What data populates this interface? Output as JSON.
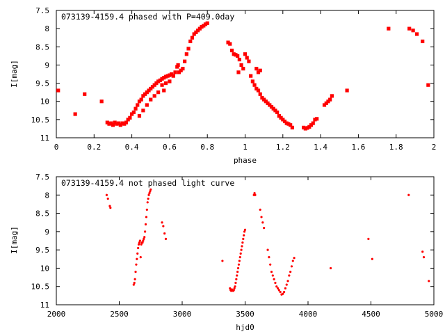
{
  "chart_data": [
    {
      "type": "scatter",
      "title": "073139-4159.4 phased with P=409.0day",
      "xlabel": "phase",
      "ylabel": "I[mag]",
      "xlim": [
        0,
        2
      ],
      "ylim": [
        11,
        7.5
      ],
      "y_inverted": true,
      "xticks": [
        0,
        0.2,
        0.4,
        0.6,
        0.8,
        1,
        1.2,
        1.4,
        1.6,
        1.8,
        2
      ],
      "yticks": [
        7.5,
        8,
        8.5,
        9,
        9.5,
        10,
        10.5,
        11
      ],
      "grid": false,
      "marker_color": "#ff0000",
      "series": [
        {
          "points": [
            [
              0.01,
              9.7
            ],
            [
              0.1,
              10.35
            ],
            [
              0.15,
              9.8
            ],
            [
              0.24,
              10.0
            ],
            [
              0.27,
              10.58
            ],
            [
              0.28,
              10.62
            ],
            [
              0.29,
              10.6
            ],
            [
              0.3,
              10.65
            ],
            [
              0.31,
              10.58
            ],
            [
              0.32,
              10.62
            ],
            [
              0.33,
              10.6
            ],
            [
              0.34,
              10.65
            ],
            [
              0.35,
              10.6
            ],
            [
              0.36,
              10.62
            ],
            [
              0.37,
              10.58
            ],
            [
              0.38,
              10.5
            ],
            [
              0.39,
              10.45
            ],
            [
              0.4,
              10.35
            ],
            [
              0.41,
              10.3
            ],
            [
              0.42,
              10.2
            ],
            [
              0.43,
              10.1
            ],
            [
              0.44,
              10.0
            ],
            [
              0.45,
              9.95
            ],
            [
              0.46,
              9.85
            ],
            [
              0.47,
              9.8
            ],
            [
              0.48,
              9.75
            ],
            [
              0.49,
              9.7
            ],
            [
              0.5,
              9.65
            ],
            [
              0.51,
              9.6
            ],
            [
              0.52,
              9.55
            ],
            [
              0.53,
              9.5
            ],
            [
              0.54,
              9.45
            ],
            [
              0.55,
              9.42
            ],
            [
              0.56,
              9.38
            ],
            [
              0.57,
              9.35
            ],
            [
              0.58,
              9.32
            ],
            [
              0.59,
              9.3
            ],
            [
              0.6,
              9.28
            ],
            [
              0.61,
              9.25
            ],
            [
              0.62,
              9.3
            ],
            [
              0.63,
              9.2
            ],
            [
              0.64,
              9.05
            ],
            [
              0.645,
              9.0
            ],
            [
              0.65,
              9.2
            ],
            [
              0.66,
              9.15
            ],
            [
              0.67,
              9.1
            ],
            [
              0.68,
              8.9
            ],
            [
              0.69,
              8.7
            ],
            [
              0.7,
              8.55
            ],
            [
              0.71,
              8.35
            ],
            [
              0.72,
              8.25
            ],
            [
              0.73,
              8.15
            ],
            [
              0.74,
              8.1
            ],
            [
              0.75,
              8.05
            ],
            [
              0.76,
              8.0
            ],
            [
              0.77,
              7.95
            ],
            [
              0.78,
              7.92
            ],
            [
              0.79,
              7.88
            ],
            [
              0.8,
              7.85
            ],
            [
              0.44,
              10.4
            ],
            [
              0.46,
              10.25
            ],
            [
              0.48,
              10.1
            ],
            [
              0.5,
              9.95
            ],
            [
              0.52,
              9.85
            ],
            [
              0.54,
              9.75
            ],
            [
              0.56,
              9.55
            ],
            [
              0.58,
              9.5
            ],
            [
              0.6,
              9.45
            ],
            [
              0.57,
              9.7
            ],
            [
              0.91,
              8.38
            ],
            [
              0.92,
              8.42
            ],
            [
              0.93,
              8.6
            ],
            [
              0.94,
              8.7
            ],
            [
              0.95,
              8.72
            ],
            [
              0.96,
              8.75
            ],
            [
              0.97,
              8.85
            ],
            [
              0.98,
              9.0
            ],
            [
              0.99,
              9.1
            ],
            [
              1.0,
              8.7
            ],
            [
              1.01,
              8.8
            ],
            [
              1.02,
              8.9
            ],
            [
              0.965,
              9.2
            ],
            [
              1.03,
              9.3
            ],
            [
              1.04,
              9.45
            ],
            [
              1.05,
              9.55
            ],
            [
              1.06,
              9.65
            ],
            [
              1.07,
              9.7
            ],
            [
              1.08,
              9.8
            ],
            [
              1.09,
              9.9
            ],
            [
              1.1,
              9.95
            ],
            [
              1.11,
              10.0
            ],
            [
              1.12,
              10.05
            ],
            [
              1.13,
              10.1
            ],
            [
              1.14,
              10.15
            ],
            [
              1.15,
              10.2
            ],
            [
              1.16,
              10.25
            ],
            [
              1.17,
              10.3
            ],
            [
              1.18,
              10.4
            ],
            [
              1.19,
              10.45
            ],
            [
              1.2,
              10.5
            ],
            [
              1.21,
              10.55
            ],
            [
              1.22,
              10.6
            ],
            [
              1.23,
              10.62
            ],
            [
              1.24,
              10.65
            ],
            [
              1.25,
              10.72
            ],
            [
              1.06,
              9.1
            ],
            [
              1.08,
              9.15
            ],
            [
              1.07,
              9.2
            ],
            [
              1.31,
              10.72
            ],
            [
              1.32,
              10.75
            ],
            [
              1.33,
              10.73
            ],
            [
              1.34,
              10.7
            ],
            [
              1.35,
              10.65
            ],
            [
              1.36,
              10.6
            ],
            [
              1.37,
              10.5
            ],
            [
              1.38,
              10.48
            ],
            [
              1.42,
              10.1
            ],
            [
              1.43,
              10.05
            ],
            [
              1.44,
              10.0
            ],
            [
              1.45,
              9.95
            ],
            [
              1.46,
              9.85
            ],
            [
              1.54,
              9.7
            ],
            [
              1.76,
              8.0
            ],
            [
              1.87,
              8.0
            ],
            [
              1.89,
              8.05
            ],
            [
              1.91,
              8.15
            ],
            [
              1.94,
              8.35
            ],
            [
              1.97,
              9.55
            ]
          ]
        }
      ]
    },
    {
      "type": "scatter",
      "title": "073139-4159.4 not phased light curve",
      "xlabel": "hjd0",
      "ylabel": "I[mag]",
      "xlim": [
        2000,
        5000
      ],
      "ylim": [
        11,
        7.5
      ],
      "y_inverted": true,
      "xticks": [
        2000,
        2500,
        3000,
        3500,
        4000,
        4500,
        5000
      ],
      "yticks": [
        7.5,
        8,
        8.5,
        9,
        9.5,
        10,
        10.5,
        11
      ],
      "grid": false,
      "marker_color": "#ff0000",
      "series": [
        {
          "points": [
            [
              2400,
              8.0
            ],
            [
              2410,
              8.1
            ],
            [
              2425,
              8.3
            ],
            [
              2430,
              8.35
            ],
            [
              2615,
              10.45
            ],
            [
              2620,
              10.4
            ],
            [
              2625,
              10.3
            ],
            [
              2630,
              10.1
            ],
            [
              2635,
              9.9
            ],
            [
              2640,
              9.75
            ],
            [
              2645,
              9.6
            ],
            [
              2650,
              9.45
            ],
            [
              2655,
              9.35
            ],
            [
              2660,
              9.3
            ],
            [
              2665,
              9.25
            ],
            [
              2670,
              9.7
            ],
            [
              2675,
              9.35
            ],
            [
              2680,
              9.3
            ],
            [
              2685,
              9.3
            ],
            [
              2690,
              9.25
            ],
            [
              2695,
              9.2
            ],
            [
              2700,
              9.15
            ],
            [
              2705,
              9.0
            ],
            [
              2710,
              8.8
            ],
            [
              2715,
              8.6
            ],
            [
              2720,
              8.4
            ],
            [
              2725,
              8.2
            ],
            [
              2730,
              8.1
            ],
            [
              2735,
              8.0
            ],
            [
              2740,
              7.95
            ],
            [
              2745,
              7.9
            ],
            [
              2750,
              7.85
            ],
            [
              2840,
              8.75
            ],
            [
              2850,
              8.85
            ],
            [
              2860,
              9.05
            ],
            [
              2870,
              9.2
            ],
            [
              3320,
              9.8
            ],
            [
              3380,
              10.55
            ],
            [
              3385,
              10.6
            ],
            [
              3390,
              10.62
            ],
            [
              3395,
              10.58
            ],
            [
              3400,
              10.6
            ],
            [
              3405,
              10.62
            ],
            [
              3410,
              10.6
            ],
            [
              3415,
              10.55
            ],
            [
              3420,
              10.5
            ],
            [
              3425,
              10.4
            ],
            [
              3430,
              10.3
            ],
            [
              3435,
              10.2
            ],
            [
              3440,
              10.1
            ],
            [
              3445,
              10.0
            ],
            [
              3450,
              9.9
            ],
            [
              3455,
              9.8
            ],
            [
              3460,
              9.7
            ],
            [
              3465,
              9.6
            ],
            [
              3470,
              9.5
            ],
            [
              3475,
              9.4
            ],
            [
              3480,
              9.3
            ],
            [
              3485,
              9.2
            ],
            [
              3490,
              9.1
            ],
            [
              3495,
              9.0
            ],
            [
              3500,
              8.95
            ],
            [
              3570,
              8.0
            ],
            [
              3575,
              7.95
            ],
            [
              3580,
              8.0
            ],
            [
              3620,
              8.4
            ],
            [
              3630,
              8.6
            ],
            [
              3640,
              8.75
            ],
            [
              3650,
              8.9
            ],
            [
              3680,
              9.5
            ],
            [
              3690,
              9.7
            ],
            [
              3700,
              9.9
            ],
            [
              3710,
              10.1
            ],
            [
              3720,
              10.2
            ],
            [
              3730,
              10.3
            ],
            [
              3740,
              10.4
            ],
            [
              3750,
              10.5
            ],
            [
              3760,
              10.55
            ],
            [
              3770,
              10.6
            ],
            [
              3780,
              10.65
            ],
            [
              3790,
              10.72
            ],
            [
              3800,
              10.7
            ],
            [
              3810,
              10.65
            ],
            [
              3820,
              10.55
            ],
            [
              3830,
              10.45
            ],
            [
              3840,
              10.35
            ],
            [
              3850,
              10.2
            ],
            [
              3860,
              10.1
            ],
            [
              3870,
              9.95
            ],
            [
              3880,
              9.8
            ],
            [
              3890,
              9.72
            ],
            [
              4180,
              10.0
            ],
            [
              4480,
              9.2
            ],
            [
              4510,
              9.75
            ],
            [
              4800,
              8.0
            ],
            [
              4910,
              9.55
            ],
            [
              4920,
              9.7
            ],
            [
              4960,
              10.35
            ]
          ]
        }
      ]
    }
  ]
}
